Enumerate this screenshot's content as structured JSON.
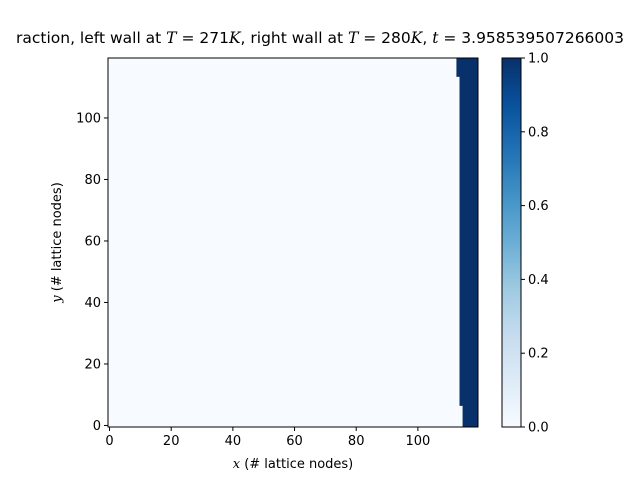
{
  "chart_data": {
    "type": "heatmap",
    "title": {
      "prefix": "raction, left wall at ",
      "left_var": "T",
      "left_eq": " = 271",
      "left_unit": "K",
      "mid": ", right wall at ",
      "right_var": "T",
      "right_eq": " = 280",
      "right_unit": "K",
      "sep": ", ",
      "time_var": "t",
      "time_eq": " = 3.958539507266003"
    },
    "xlabel": {
      "var": "x",
      "text": " (# lattice nodes)"
    },
    "ylabel": {
      "var": "y",
      "text": " (# lattice nodes)"
    },
    "xlim": [
      -0.5,
      119.5
    ],
    "ylim": [
      -0.5,
      119.5
    ],
    "xticks": [
      "0",
      "20",
      "40",
      "60",
      "80",
      "100"
    ],
    "yticks": [
      "0",
      "20",
      "40",
      "60",
      "80",
      "100"
    ],
    "colormap": "Blues",
    "colors": {
      "low": "#f7fbff",
      "high": "#08306b"
    },
    "colorbar": {
      "ticks": [
        "0.0",
        "0.2",
        "0.4",
        "0.6",
        "0.8",
        "1.0"
      ],
      "range": [
        0,
        1
      ]
    },
    "field_description": "value 0 everywhere except a boundary layer at the right wall",
    "front": [
      {
        "y_from": 0,
        "y_to": 6,
        "x_from": 115,
        "value": 1
      },
      {
        "y_from": 7,
        "y_to": 113,
        "x_from": 114,
        "value": 1
      },
      {
        "y_from": 114,
        "y_to": 119,
        "x_from": 113,
        "value": 1
      }
    ],
    "grid": false
  }
}
